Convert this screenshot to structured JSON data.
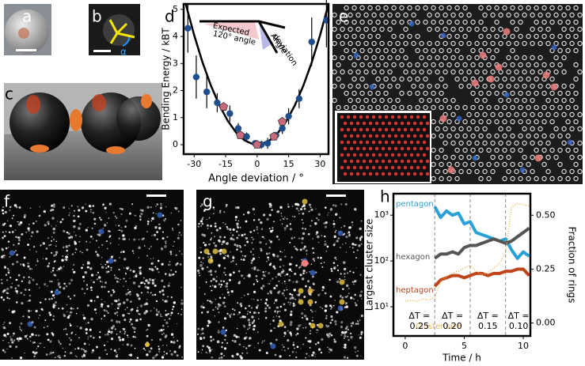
{
  "panels": {
    "labels": [
      "a",
      "b",
      "c",
      "d",
      "e",
      "f",
      "g",
      "h"
    ]
  },
  "chart_data": [
    {
      "type": "scatter",
      "xlabel": "Angle deviation / °",
      "ylabel": "Bending Energy / kBT",
      "xlim": [
        -35,
        34
      ],
      "ylim": [
        -0.35,
        5.2
      ],
      "xticks": [
        -30,
        -15,
        0,
        15,
        30
      ],
      "yticks": [
        0,
        1,
        2,
        3,
        4,
        5
      ],
      "annotations": [
        [
          "Expected",
          "120° angle"
        ],
        [
          "Angle",
          "deviation"
        ]
      ],
      "series": [
        {
          "style": "line",
          "color": "#000000",
          "x": [
            -34,
            -30,
            -26,
            -22,
            -18,
            -14,
            -10,
            -6,
            -2,
            0,
            2,
            6,
            10,
            14,
            18,
            22,
            26,
            30,
            34
          ],
          "values": [
            5.2,
            4.05,
            3.04,
            2.18,
            1.46,
            0.88,
            0.45,
            0.16,
            0.02,
            0,
            0.02,
            0.16,
            0.45,
            0.88,
            1.46,
            2.18,
            3.04,
            4.05,
            5.2
          ]
        },
        {
          "style": "markers",
          "marker": "circle",
          "color": "#1f4e8c",
          "x": [
            -33,
            -29,
            -24,
            -19,
            -13,
            -9,
            -5,
            -1,
            2,
            5,
            9,
            12,
            15,
            20,
            26,
            33
          ],
          "values": [
            4.3,
            2.5,
            1.95,
            1.55,
            1.15,
            0.6,
            0.3,
            0.05,
            0,
            0.05,
            0.35,
            0.6,
            1.05,
            1.7,
            3.8,
            4.6
          ],
          "errors": [
            0.9,
            0.8,
            0.6,
            0.35,
            0.3,
            0.2,
            0.15,
            0.1,
            0.15,
            0.2,
            0.1,
            0.2,
            0.3,
            0.35,
            0.9,
            1.0
          ]
        },
        {
          "style": "markers",
          "marker": "pentagon",
          "color": "#c96a7a",
          "x": [
            -16,
            -8,
            0,
            8,
            12
          ],
          "values": [
            1.4,
            0.35,
            0,
            0.3,
            0.85
          ]
        }
      ]
    },
    {
      "type": "line",
      "xlabel": "Time / h",
      "ylabel": "Largest cluster size",
      "y2label": "Fraction of rings",
      "x": [
        0,
        0.5,
        1,
        1.5,
        2,
        2.5,
        3,
        3.5,
        4,
        4.5,
        5,
        5.5,
        6,
        6.5,
        7,
        7.5,
        8,
        8.5,
        9,
        9.5,
        10,
        10.5
      ],
      "xlim": [
        -1,
        10.6
      ],
      "xticks": [
        0,
        5,
        10
      ],
      "ylim": [
        2.3,
        2950
      ],
      "ylog": true,
      "yticks": [
        {
          "value": 10,
          "label": "10¹"
        },
        {
          "value": 100,
          "label": "10²"
        },
        {
          "value": 1000,
          "label": "10³"
        }
      ],
      "y2lim": [
        -0.06,
        0.6
      ],
      "y2ticks": [
        {
          "value": 0,
          "label": "0.00"
        },
        {
          "value": 0.25,
          "label": "0.25"
        },
        {
          "value": 0.5,
          "label": "0.50"
        }
      ],
      "vlines": [
        2.5,
        5.5,
        8.5
      ],
      "annotations": [
        [
          "ΔT =",
          "0.25"
        ],
        [
          "ΔT =",
          "0.20"
        ],
        [
          "ΔT =",
          "0.15"
        ],
        [
          "ΔT =",
          "0.10"
        ]
      ],
      "series": [
        {
          "name": "pentagon",
          "color": "#2aa1d6",
          "axis": "y2",
          "values": [
            null,
            null,
            null,
            null,
            null,
            0.54,
            0.49,
            0.52,
            0.5,
            0.51,
            0.46,
            0.47,
            0.42,
            0.41,
            0.4,
            0.39,
            0.38,
            0.39,
            0.34,
            0.3,
            0.33,
            0.31
          ]
        },
        {
          "name": "hexagon",
          "color": "#555555",
          "axis": "y2",
          "values": [
            null,
            null,
            null,
            null,
            null,
            0.3,
            0.32,
            0.32,
            0.33,
            0.32,
            0.35,
            0.36,
            0.36,
            0.37,
            0.38,
            0.39,
            0.38,
            0.37,
            0.38,
            0.4,
            0.42,
            0.44
          ]
        },
        {
          "name": "heptagon",
          "color": "#c0441a",
          "axis": "y2",
          "values": [
            null,
            null,
            null,
            null,
            null,
            0.17,
            0.2,
            0.21,
            0.22,
            0.22,
            0.21,
            0.22,
            0.23,
            0.23,
            0.22,
            0.23,
            0.23,
            0.24,
            0.24,
            0.25,
            0.25,
            0.22
          ]
        },
        {
          "name": "Cluster size",
          "color": "#e8b84a",
          "dashed": true,
          "values": [
            13,
            14,
            13,
            15,
            14,
            16,
            35,
            45,
            55,
            60,
            70,
            80,
            60,
            50,
            55,
            70,
            90,
            150,
            1500,
            1800,
            1700,
            1600
          ]
        }
      ]
    }
  ]
}
